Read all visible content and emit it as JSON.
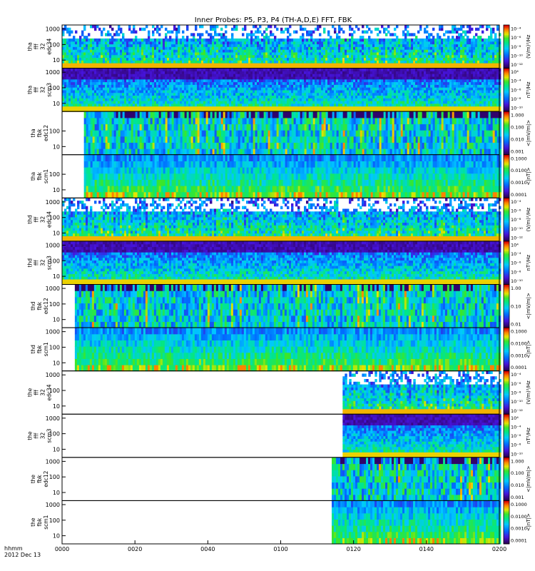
{
  "chart_data": {
    "type": "heatmap",
    "title": "Inner Probes: P5, P3, P4 (TH-A,D,E) FFT, FBK",
    "time_label": "hhmm",
    "date_label": "2012 Dec 13",
    "x_ticks": [
      "0000",
      "0020",
      "0040",
      "0100",
      "0120",
      "0140",
      "0200"
    ],
    "x_range_minutes": [
      0,
      120
    ],
    "panels": [
      {
        "name": "tha-fff-32-edc34",
        "ylabel": [
          "tha",
          "fff",
          "32",
          "edc34"
        ],
        "yticks": [
          "1000",
          "100",
          "10"
        ],
        "ymin": 3,
        "ymax": 1800,
        "cbar_ticks": [
          "10⁻⁴",
          "10⁻⁶",
          "10⁻⁸",
          "10⁻¹⁰",
          "10⁻¹²"
        ],
        "cbar_label": "(V/m)²/Hz",
        "cbar_scale": "log",
        "data_start_min": 0,
        "pattern": "fff-e",
        "blank_after_min": null
      },
      {
        "name": "tha-fff-32-scm3",
        "ylabel": [
          "tha",
          "fff",
          "32",
          "scm3"
        ],
        "yticks": [
          "1000",
          "100",
          "10"
        ],
        "ymin": 3,
        "ymax": 1800,
        "cbar_ticks": [
          "10⁴",
          "10⁻⁴",
          "10⁻⁶",
          "10⁻⁸",
          "10⁻¹⁰"
        ],
        "cbar_label": "nT²/Hz",
        "cbar_scale": "log",
        "data_start_min": 0,
        "pattern": "fff-b"
      },
      {
        "name": "tha-fbk-edc12",
        "ylabel": [
          "tha",
          "fbk",
          "edc12"
        ],
        "yticks": [
          "100",
          "10"
        ],
        "ymin": 3,
        "ymax": 1800,
        "cbar_ticks": [
          "1.000",
          "0.100",
          "0.010",
          "0.001"
        ],
        "cbar_label": "<|mV/m|>",
        "cbar_scale": "log",
        "data_start_min": 6,
        "pattern": "fbk-e"
      },
      {
        "name": "tha-fbk-scm1",
        "ylabel": [
          "tha",
          "fbk",
          "scm1"
        ],
        "yticks": [
          "100",
          "10"
        ],
        "ymin": 3,
        "ymax": 1800,
        "cbar_ticks": [
          "0.1000",
          "0.0100",
          "0.0010",
          "0.0001"
        ],
        "cbar_label": "<|nT|>",
        "cbar_scale": "log",
        "data_start_min": 6,
        "pattern": "fbk-b"
      },
      {
        "name": "thd-fff-32-edc34",
        "ylabel": [
          "thd",
          "fff",
          "32",
          "edc34"
        ],
        "yticks": [
          "1000",
          "100",
          "10"
        ],
        "ymin": 3,
        "ymax": 1800,
        "cbar_ticks": [
          "10⁻⁴",
          "10⁻⁶",
          "10⁻⁸",
          "10⁻¹⁰",
          "10⁻¹²"
        ],
        "cbar_label": "(V/m)²/Hz",
        "cbar_scale": "log",
        "data_start_min": 0,
        "pattern": "fff-e"
      },
      {
        "name": "thd-fff-32-scm3",
        "ylabel": [
          "thd",
          "fff",
          "32",
          "scm3"
        ],
        "yticks": [
          "1000",
          "100",
          "10"
        ],
        "ymin": 3,
        "ymax": 1800,
        "cbar_ticks": [
          "10⁴",
          "10⁻⁴",
          "10⁻⁶",
          "10⁻⁸",
          "10⁻¹⁰"
        ],
        "cbar_label": "nT²/Hz",
        "cbar_scale": "log",
        "data_start_min": 0,
        "pattern": "fff-b"
      },
      {
        "name": "thd-fbk-edc12",
        "ylabel": [
          "thd",
          "fbk",
          "edc12"
        ],
        "yticks": [
          "1000",
          "100",
          "10"
        ],
        "ymin": 3,
        "ymax": 1800,
        "cbar_ticks": [
          "1.00",
          "0.10",
          "0.01"
        ],
        "cbar_label": "<|mV/m|>",
        "cbar_scale": "log",
        "data_start_min": 3.5,
        "pattern": "fbk-e"
      },
      {
        "name": "thd-fbk-scm1",
        "ylabel": [
          "thd",
          "fbk",
          "scm1"
        ],
        "yticks": [
          "1000",
          "100",
          "10"
        ],
        "ymin": 3,
        "ymax": 1800,
        "cbar_ticks": [
          "0.1000",
          "0.0100",
          "0.0010",
          "0.0001"
        ],
        "cbar_label": "<|nT|>",
        "cbar_scale": "log",
        "data_start_min": 3.5,
        "pattern": "fbk-b"
      },
      {
        "name": "the-fff-32-edc34",
        "ylabel": [
          "the",
          "fff",
          "32",
          "edc34"
        ],
        "yticks": [
          "1000",
          "100",
          "10"
        ],
        "ymin": 3,
        "ymax": 1800,
        "cbar_ticks": [
          "10⁻⁴",
          "10⁻⁶",
          "10⁻⁸",
          "10⁻¹⁰",
          "10⁻¹²"
        ],
        "cbar_label": "(V/m)²/Hz",
        "cbar_scale": "log",
        "data_start_min": 77,
        "pattern": "fff-e"
      },
      {
        "name": "the-fff-32-scm3",
        "ylabel": [
          "the",
          "fff",
          "32",
          "scm3"
        ],
        "yticks": [
          "1000",
          "100",
          "10"
        ],
        "ymin": 3,
        "ymax": 1800,
        "cbar_ticks": [
          "10⁴",
          "10⁻⁴",
          "10⁻⁶",
          "10⁻⁸",
          "10⁻¹⁰"
        ],
        "cbar_label": "nT²/Hz",
        "cbar_scale": "log",
        "data_start_min": 77,
        "pattern": "fff-b"
      },
      {
        "name": "the-fbk-edc12",
        "ylabel": [
          "the",
          "fbk",
          "edc12"
        ],
        "yticks": [
          "1000",
          "100",
          "10"
        ],
        "ymin": 3,
        "ymax": 1800,
        "cbar_ticks": [
          "1.000",
          "0.100",
          "0.010",
          "0.001"
        ],
        "cbar_label": "<|mV/m|>",
        "cbar_scale": "log",
        "data_start_min": 74,
        "pattern": "fbk-e"
      },
      {
        "name": "the-fbk-scm1",
        "ylabel": [
          "the",
          "fbk",
          "scm1"
        ],
        "yticks": [
          "1000",
          "100",
          "10"
        ],
        "ymin": 3,
        "ymax": 1800,
        "cbar_ticks": [
          "0.1000",
          "0.0100",
          "0.0010",
          "0.0001"
        ],
        "cbar_label": "<|nT|>",
        "cbar_scale": "log",
        "data_start_min": 74,
        "pattern": "fbk-b"
      }
    ]
  }
}
